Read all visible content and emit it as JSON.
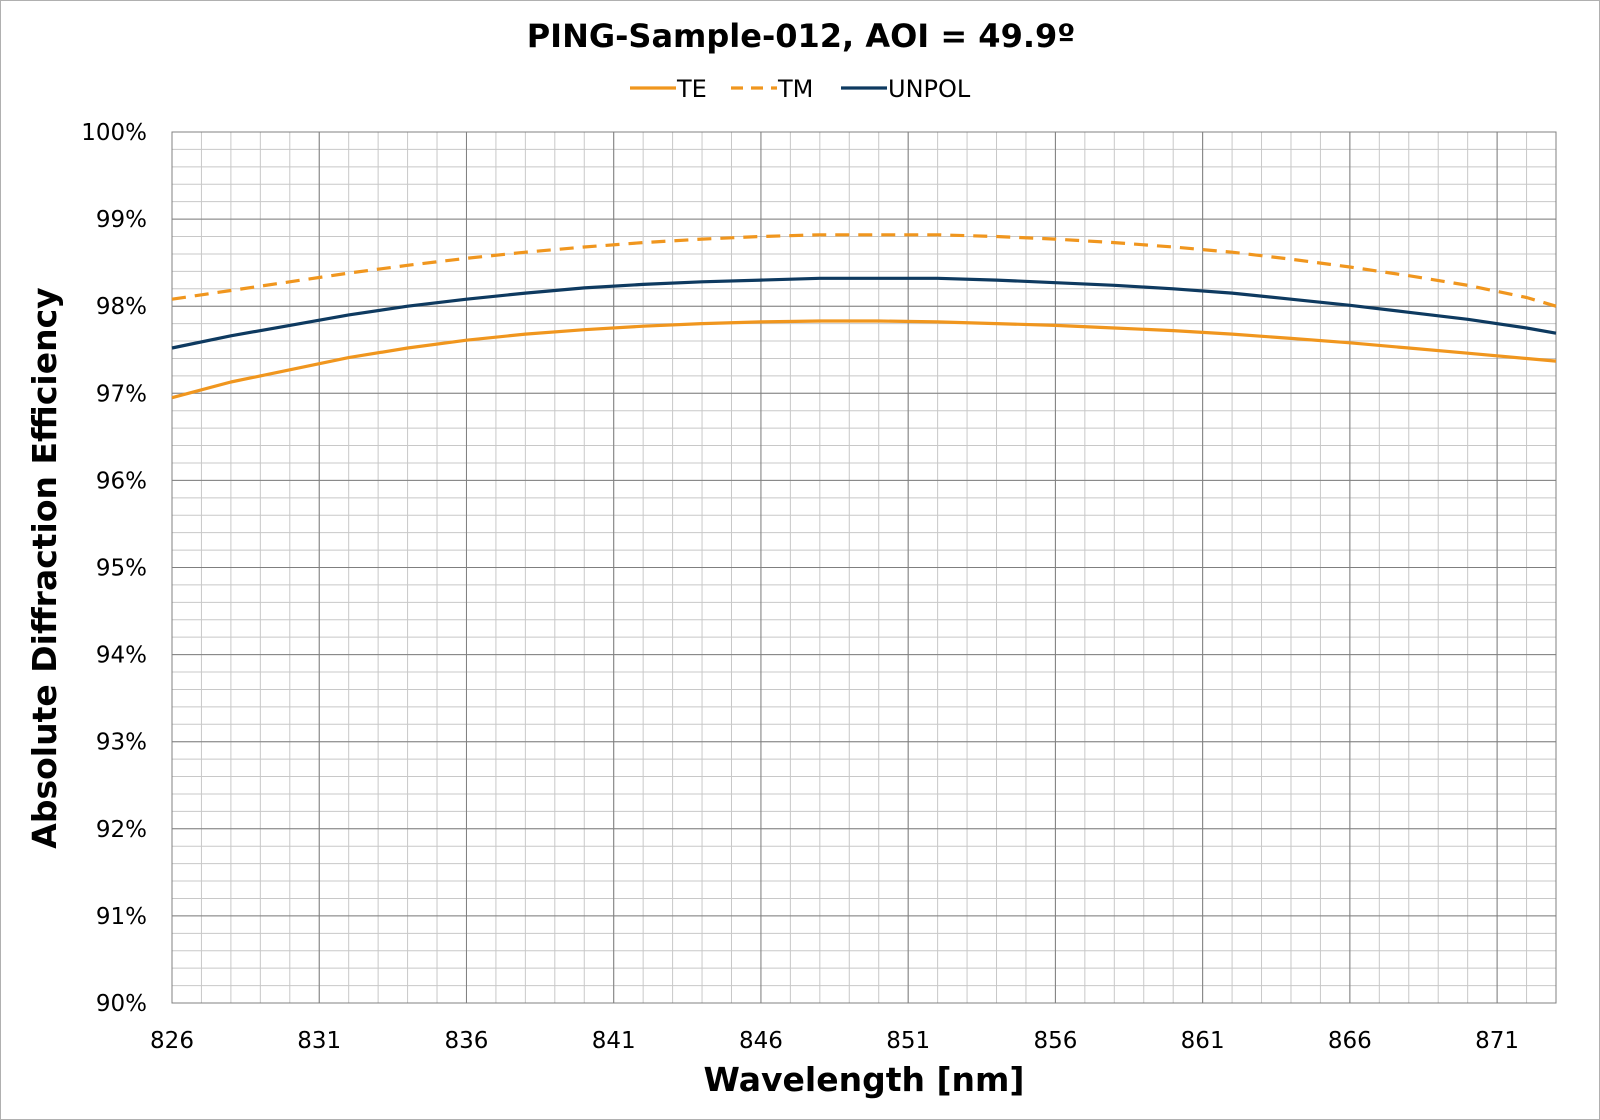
{
  "chart_data": {
    "type": "line",
    "title": "PING-Sample-012, AOI = 49.9º",
    "xlabel": "Wavelength [nm]",
    "ylabel": "Absolute Diffraction Efficiency",
    "xlim": [
      826,
      873
    ],
    "ylim": [
      90,
      100
    ],
    "x_ticks": [
      826,
      831,
      836,
      841,
      846,
      851,
      856,
      861,
      866,
      871
    ],
    "x_tick_labels": [
      "826",
      "831",
      "836",
      "841",
      "846",
      "851",
      "856",
      "861",
      "866",
      "871"
    ],
    "y_ticks": [
      90,
      91,
      92,
      93,
      94,
      95,
      96,
      97,
      98,
      99,
      100
    ],
    "y_tick_labels": [
      "90%",
      "91%",
      "92%",
      "93%",
      "94%",
      "95%",
      "96%",
      "97%",
      "98%",
      "99%",
      "100%"
    ],
    "grid": true,
    "legend_position": "top",
    "x": [
      826,
      828,
      830,
      832,
      834,
      836,
      838,
      840,
      842,
      844,
      846,
      848,
      850,
      852,
      854,
      856,
      858,
      860,
      862,
      864,
      866,
      868,
      870,
      872,
      873
    ],
    "series": [
      {
        "name": "TE",
        "color": "#F0961E",
        "style": "solid",
        "values": [
          96.95,
          97.13,
          97.27,
          97.41,
          97.52,
          97.61,
          97.68,
          97.73,
          97.77,
          97.8,
          97.82,
          97.83,
          97.83,
          97.82,
          97.8,
          97.78,
          97.75,
          97.72,
          97.68,
          97.63,
          97.58,
          97.52,
          97.46,
          97.4,
          97.37
        ]
      },
      {
        "name": "TM",
        "color": "#F0961E",
        "style": "dashed",
        "values": [
          98.08,
          98.18,
          98.28,
          98.38,
          98.47,
          98.55,
          98.62,
          98.68,
          98.73,
          98.77,
          98.8,
          98.82,
          98.82,
          98.82,
          98.8,
          98.77,
          98.73,
          98.68,
          98.62,
          98.54,
          98.45,
          98.35,
          98.24,
          98.1,
          98.0
        ]
      },
      {
        "name": "UNPOL",
        "color": "#0E3A60",
        "style": "solid",
        "values": [
          97.52,
          97.66,
          97.78,
          97.9,
          98.0,
          98.08,
          98.15,
          98.21,
          98.25,
          98.28,
          98.3,
          98.32,
          98.32,
          98.32,
          98.3,
          98.27,
          98.24,
          98.2,
          98.15,
          98.08,
          98.01,
          97.93,
          97.85,
          97.75,
          97.69
        ]
      }
    ]
  }
}
